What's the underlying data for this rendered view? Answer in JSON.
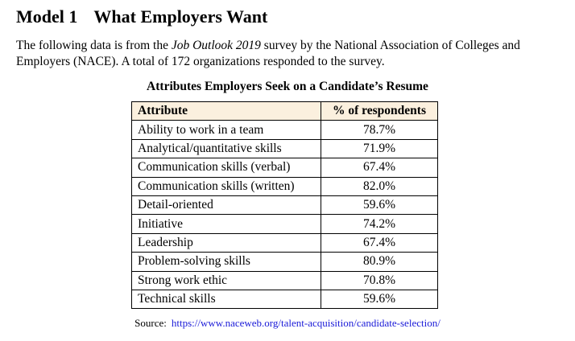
{
  "heading": {
    "model": "Model 1",
    "title": "What Employers Want"
  },
  "intro": {
    "before": "The following data is from the ",
    "survey_name": "Job Outlook 2019",
    "after": " survey by the National Association of Colleges and Employers (NACE). A total of 172 organizations responded to the survey."
  },
  "table": {
    "title": "Attributes Employers Seek on a Candidate’s Resume",
    "columns": [
      "Attribute",
      "% of respondents"
    ],
    "rows": [
      {
        "attribute": "Ability to work in a team",
        "percent": "78.7%"
      },
      {
        "attribute": "Analytical/quantitative skills",
        "percent": "71.9%"
      },
      {
        "attribute": "Communication skills (verbal)",
        "percent": "67.4%"
      },
      {
        "attribute": "Communication skills (written)",
        "percent": "82.0%"
      },
      {
        "attribute": "Detail-oriented",
        "percent": "59.6%"
      },
      {
        "attribute": "Initiative",
        "percent": "74.2%"
      },
      {
        "attribute": "Leadership",
        "percent": "67.4%"
      },
      {
        "attribute": "Problem-solving skills",
        "percent": "80.9%"
      },
      {
        "attribute": "Strong work ethic",
        "percent": "70.8%"
      },
      {
        "attribute": "Technical skills",
        "percent": "59.6%"
      }
    ]
  },
  "source": {
    "label": "Source:",
    "url": "https://www.naceweb.org/talent-acquisition/candidate-selection/"
  },
  "colors": {
    "header_fill": "#fbf0de",
    "link": "#1a1ad8"
  }
}
